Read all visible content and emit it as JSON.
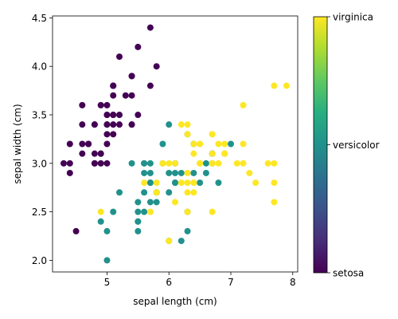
{
  "chart_data": {
    "type": "scatter",
    "xlabel": "sepal length (cm)",
    "ylabel": "sepal width (cm)",
    "xlim": [
      4.12,
      8.08
    ],
    "ylim": [
      1.88,
      4.52
    ],
    "x_ticks": [
      5,
      6,
      7,
      8
    ],
    "y_ticks": [
      2.0,
      2.5,
      3.0,
      3.5,
      4.0,
      4.5
    ],
    "grid": false,
    "colormap": "viridis",
    "colors": {
      "setosa": "#440154",
      "versicolor": "#21918c",
      "virginica": "#fde725"
    },
    "colorbar": {
      "position": "right",
      "tick_labels": [
        "setosa",
        "versicolor",
        "virginica"
      ],
      "range": [
        0,
        2
      ]
    },
    "series": [
      {
        "name": "setosa",
        "class": 0,
        "points": [
          [
            5.1,
            3.5
          ],
          [
            4.9,
            3.0
          ],
          [
            4.7,
            3.2
          ],
          [
            4.6,
            3.1
          ],
          [
            5.0,
            3.6
          ],
          [
            5.4,
            3.9
          ],
          [
            4.6,
            3.4
          ],
          [
            5.0,
            3.4
          ],
          [
            4.4,
            2.9
          ],
          [
            4.9,
            3.1
          ],
          [
            5.4,
            3.7
          ],
          [
            4.8,
            3.4
          ],
          [
            4.8,
            3.0
          ],
          [
            4.3,
            3.0
          ],
          [
            5.8,
            4.0
          ],
          [
            5.7,
            4.4
          ],
          [
            5.4,
            3.9
          ],
          [
            5.1,
            3.5
          ],
          [
            5.7,
            3.8
          ],
          [
            5.1,
            3.8
          ],
          [
            5.4,
            3.4
          ],
          [
            5.1,
            3.7
          ],
          [
            4.6,
            3.6
          ],
          [
            5.1,
            3.3
          ],
          [
            4.8,
            3.4
          ],
          [
            5.0,
            3.0
          ],
          [
            5.0,
            3.4
          ],
          [
            5.2,
            3.5
          ],
          [
            5.2,
            3.4
          ],
          [
            4.7,
            3.2
          ],
          [
            4.8,
            3.1
          ],
          [
            5.4,
            3.4
          ],
          [
            5.2,
            4.1
          ],
          [
            5.5,
            4.2
          ],
          [
            4.9,
            3.1
          ],
          [
            5.0,
            3.2
          ],
          [
            5.5,
            3.5
          ],
          [
            4.9,
            3.6
          ],
          [
            4.4,
            3.0
          ],
          [
            5.1,
            3.4
          ],
          [
            5.0,
            3.5
          ],
          [
            4.5,
            2.3
          ],
          [
            4.4,
            3.2
          ],
          [
            5.0,
            3.5
          ],
          [
            5.1,
            3.8
          ],
          [
            4.8,
            3.0
          ],
          [
            5.1,
            3.8
          ],
          [
            4.6,
            3.2
          ],
          [
            5.3,
            3.7
          ],
          [
            5.0,
            3.3
          ]
        ]
      },
      {
        "name": "versicolor",
        "class": 1,
        "points": [
          [
            7.0,
            3.2
          ],
          [
            6.4,
            3.2
          ],
          [
            6.9,
            3.1
          ],
          [
            5.5,
            2.3
          ],
          [
            6.5,
            2.8
          ],
          [
            5.7,
            2.8
          ],
          [
            6.3,
            3.3
          ],
          [
            4.9,
            2.4
          ],
          [
            6.6,
            2.9
          ],
          [
            5.2,
            2.7
          ],
          [
            5.0,
            2.0
          ],
          [
            5.9,
            3.0
          ],
          [
            6.0,
            2.2
          ],
          [
            6.1,
            2.9
          ],
          [
            5.6,
            2.9
          ],
          [
            6.7,
            3.1
          ],
          [
            5.6,
            3.0
          ],
          [
            5.8,
            2.7
          ],
          [
            6.2,
            2.2
          ],
          [
            5.6,
            2.5
          ],
          [
            5.9,
            3.2
          ],
          [
            6.1,
            2.8
          ],
          [
            6.3,
            2.5
          ],
          [
            6.1,
            2.8
          ],
          [
            6.4,
            2.9
          ],
          [
            6.6,
            3.0
          ],
          [
            6.8,
            2.8
          ],
          [
            6.7,
            3.0
          ],
          [
            6.0,
            2.9
          ],
          [
            5.7,
            2.6
          ],
          [
            5.5,
            2.4
          ],
          [
            5.5,
            2.4
          ],
          [
            5.8,
            2.7
          ],
          [
            6.0,
            2.7
          ],
          [
            5.4,
            3.0
          ],
          [
            6.0,
            3.4
          ],
          [
            6.7,
            3.1
          ],
          [
            6.3,
            2.3
          ],
          [
            5.6,
            3.0
          ],
          [
            5.5,
            2.5
          ],
          [
            5.5,
            2.6
          ],
          [
            6.1,
            3.0
          ],
          [
            5.8,
            2.6
          ],
          [
            5.0,
            2.3
          ],
          [
            5.6,
            2.7
          ],
          [
            5.7,
            3.0
          ],
          [
            5.7,
            2.9
          ],
          [
            6.2,
            2.9
          ],
          [
            5.1,
            2.5
          ],
          [
            5.7,
            2.8
          ]
        ]
      },
      {
        "name": "virginica",
        "class": 2,
        "points": [
          [
            6.3,
            3.3
          ],
          [
            5.8,
            2.7
          ],
          [
            7.1,
            3.0
          ],
          [
            6.3,
            2.9
          ],
          [
            6.5,
            3.0
          ],
          [
            7.6,
            3.0
          ],
          [
            4.9,
            2.5
          ],
          [
            7.3,
            2.9
          ],
          [
            6.7,
            2.5
          ],
          [
            7.2,
            3.6
          ],
          [
            6.5,
            3.2
          ],
          [
            6.4,
            2.7
          ],
          [
            6.8,
            3.0
          ],
          [
            5.7,
            2.5
          ],
          [
            5.8,
            2.8
          ],
          [
            6.4,
            3.2
          ],
          [
            6.5,
            3.0
          ],
          [
            7.7,
            3.8
          ],
          [
            7.7,
            2.6
          ],
          [
            6.0,
            2.2
          ],
          [
            6.9,
            3.2
          ],
          [
            5.6,
            2.8
          ],
          [
            7.7,
            2.8
          ],
          [
            6.3,
            2.7
          ],
          [
            6.7,
            3.3
          ],
          [
            7.2,
            3.2
          ],
          [
            6.2,
            2.8
          ],
          [
            6.1,
            3.0
          ],
          [
            6.4,
            2.8
          ],
          [
            7.2,
            3.0
          ],
          [
            7.4,
            2.8
          ],
          [
            7.9,
            3.8
          ],
          [
            6.4,
            2.8
          ],
          [
            6.3,
            2.8
          ],
          [
            6.1,
            2.6
          ],
          [
            7.7,
            3.0
          ],
          [
            6.3,
            3.4
          ],
          [
            6.4,
            3.1
          ],
          [
            6.0,
            3.0
          ],
          [
            6.9,
            3.1
          ],
          [
            6.7,
            3.1
          ],
          [
            6.9,
            3.1
          ],
          [
            5.8,
            2.7
          ],
          [
            6.8,
            3.2
          ],
          [
            6.7,
            3.3
          ],
          [
            6.7,
            3.0
          ],
          [
            6.3,
            2.5
          ],
          [
            6.5,
            3.0
          ],
          [
            6.2,
            3.4
          ],
          [
            5.9,
            3.0
          ]
        ]
      }
    ]
  }
}
